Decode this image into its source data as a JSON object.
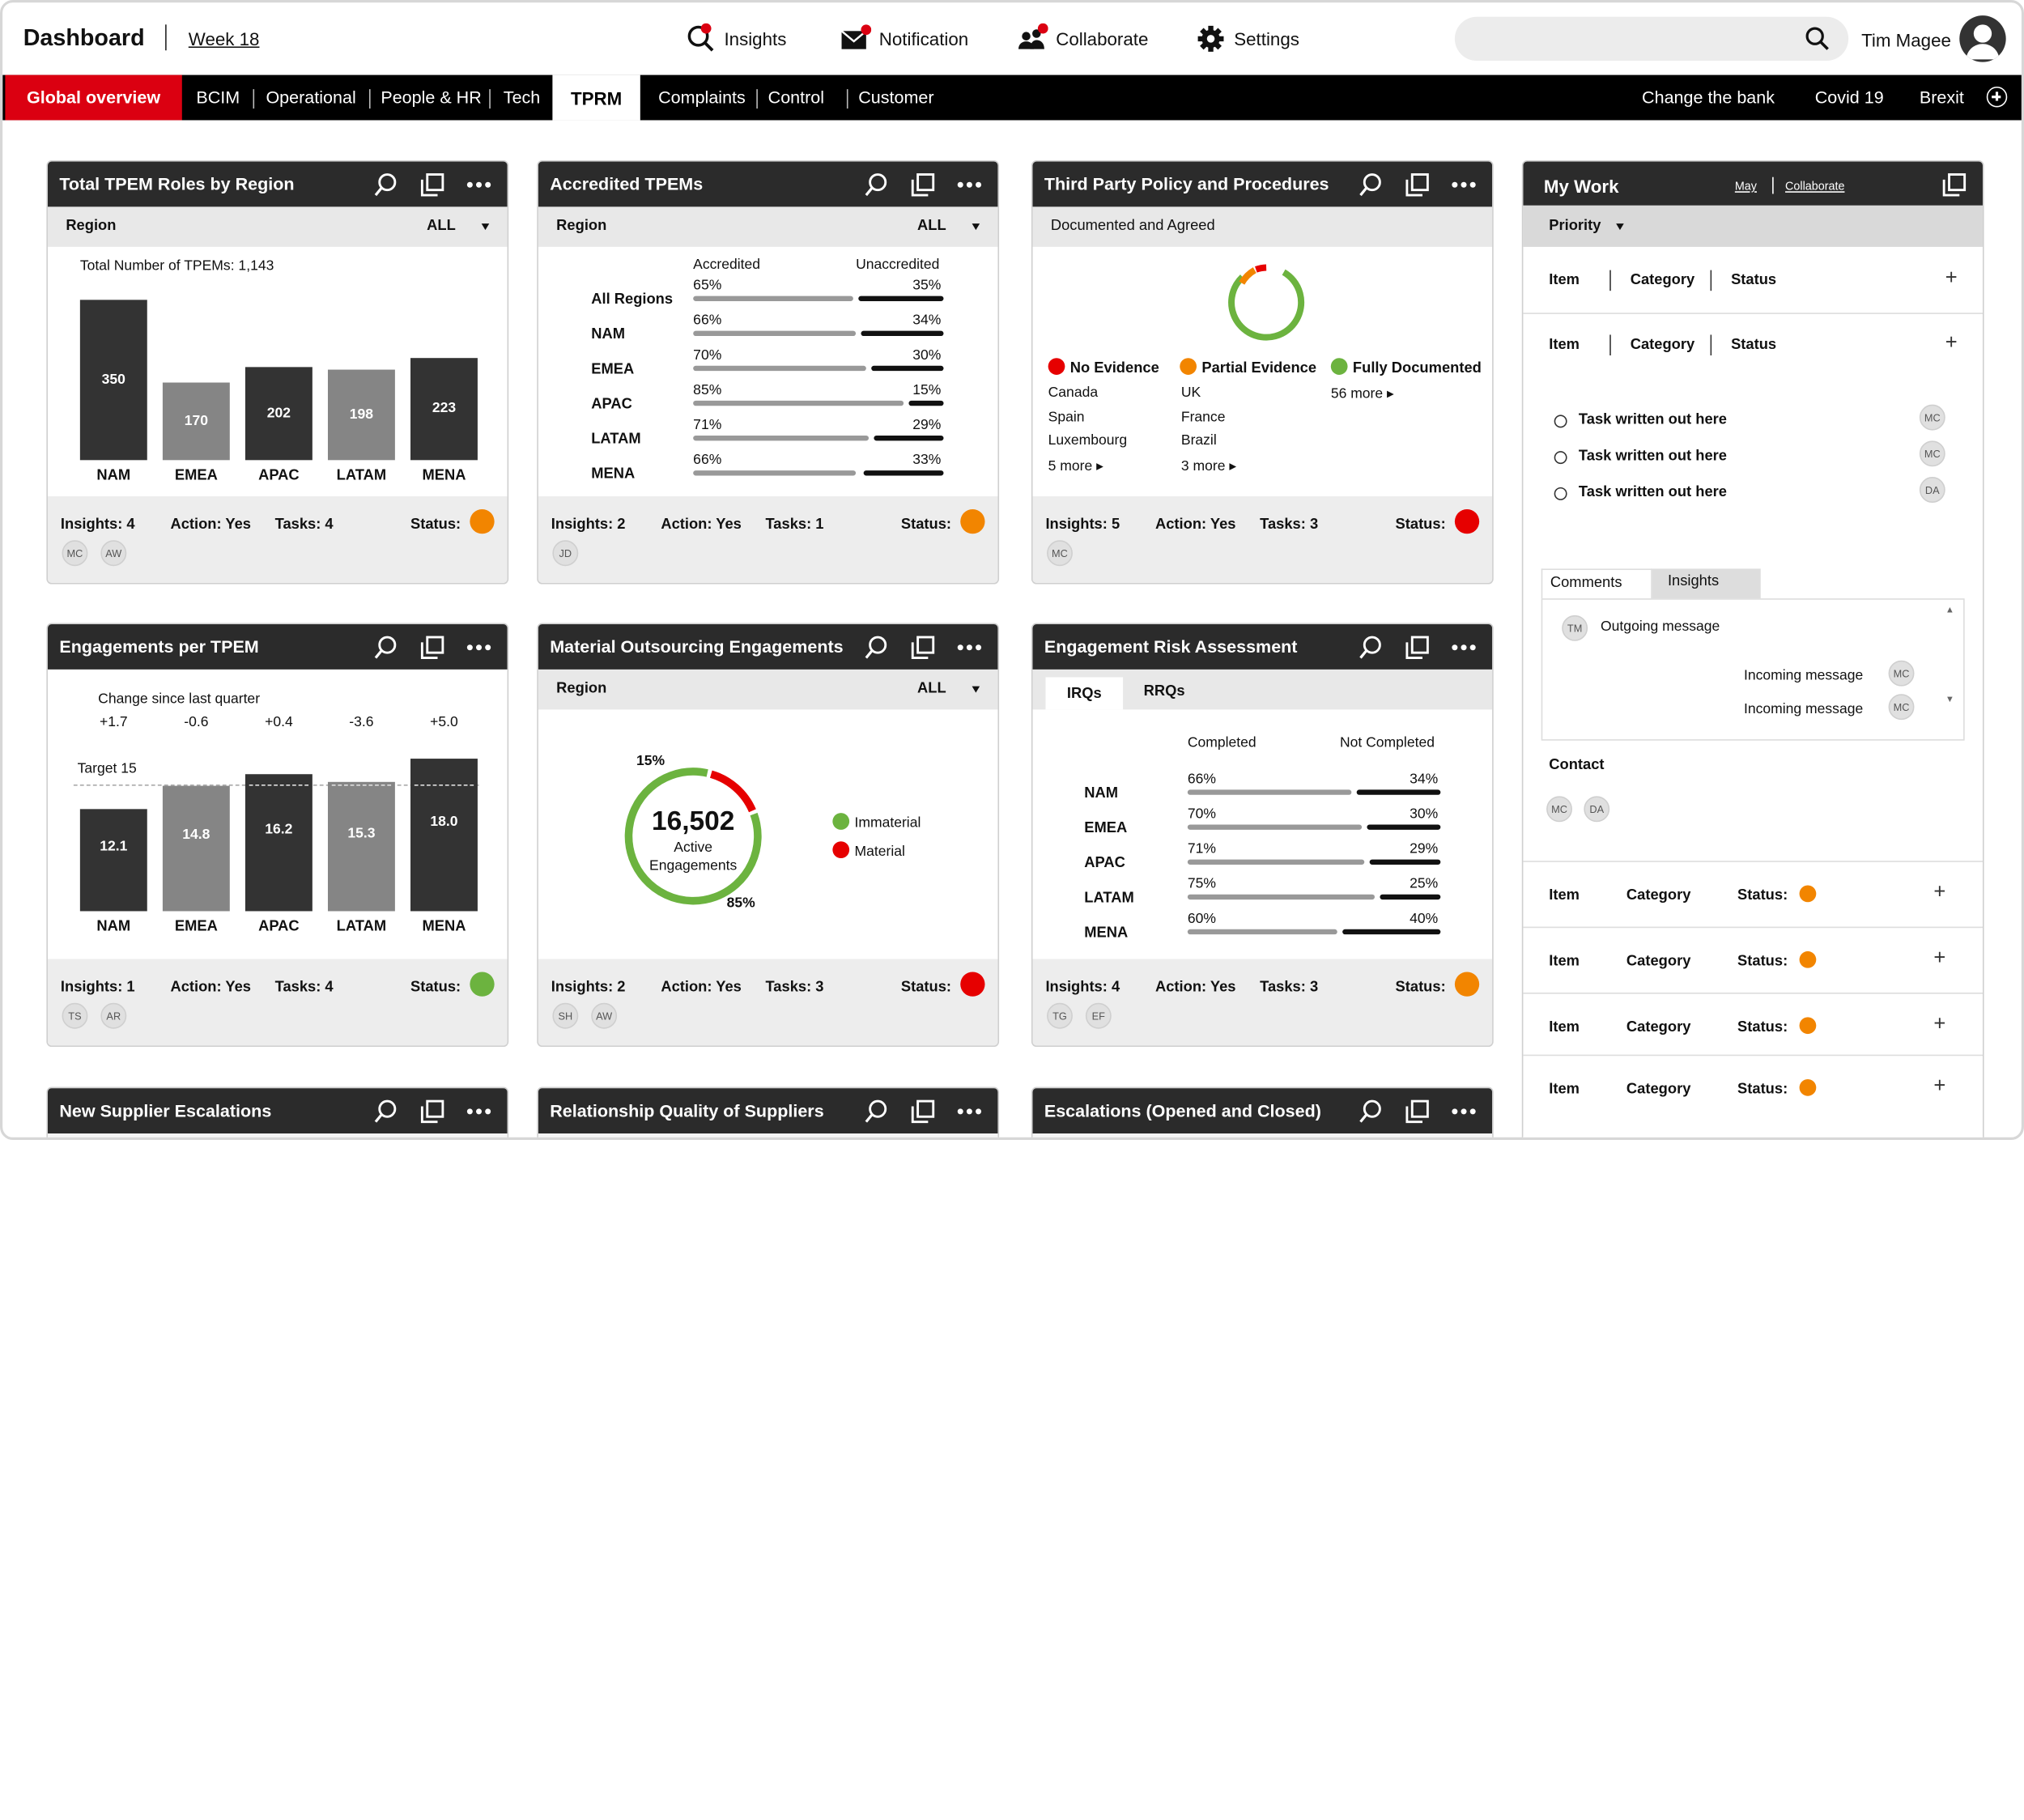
{
  "header": {
    "title": "Dashboard",
    "week": "Week 18",
    "nav": [
      {
        "label": "Insights",
        "icon": "search-notify-icon"
      },
      {
        "label": "Notification",
        "icon": "mail-notify-icon"
      },
      {
        "label": "Collaborate",
        "icon": "people-notify-icon"
      },
      {
        "label": "Settings",
        "icon": "gear-icon"
      }
    ],
    "search_placeholder": "",
    "user_name": "Tim Magee"
  },
  "navbar": {
    "global": "Global overview",
    "items": [
      "BCIM",
      "Operational",
      "People & HR",
      "Tech",
      "TPRM",
      "Complaints",
      "Control",
      "Customer"
    ],
    "active": "TPRM",
    "right": [
      "Change the bank",
      "Covid 19",
      "Brexit"
    ]
  },
  "colors": {
    "brand_red": "#db0011",
    "status_orange": "#f28500",
    "status_red": "#e60000",
    "status_green": "#6cb33f",
    "header_dark": "#2b2b2b"
  },
  "cards": {
    "tpem_roles": {
      "title": "Total TPEM Roles by Region",
      "filter_label": "Region",
      "filter_value": "ALL",
      "total_label": "Total Number of TPEMs: 1,143",
      "insights": "Insights: 4",
      "action": "Action: Yes",
      "tasks": "Tasks: 4",
      "status_label": "Status:",
      "status_color": "#f28500",
      "people": [
        "MC",
        "AW"
      ]
    },
    "accredited": {
      "title": "Accredited TPEMs",
      "filter_label": "Region",
      "filter_value": "ALL",
      "col_a": "Accredited",
      "col_b": "Unaccredited",
      "insights": "Insights: 2",
      "action": "Action: Yes",
      "tasks": "Tasks: 1",
      "status_label": "Status:",
      "status_color": "#f28500",
      "people": [
        "JD"
      ]
    },
    "policy": {
      "title": "Third Party Policy and Procedures",
      "subtitle": "Documented and Agreed",
      "groups": [
        {
          "label": "No Evidence",
          "color": "#e60000",
          "items": [
            "Canada",
            "Spain",
            "Luxembourg"
          ],
          "more": "5 more"
        },
        {
          "label": "Partial Evidence",
          "color": "#f28500",
          "items": [
            "UK",
            "France",
            "Brazil"
          ],
          "more": "3 more"
        },
        {
          "label": "Fully Documented",
          "color": "#6cb33f",
          "items": [],
          "more": "56 more"
        }
      ],
      "insights": "Insights: 5",
      "action": "Action: Yes",
      "tasks": "Tasks: 3",
      "status_label": "Status:",
      "status_color": "#e60000",
      "people": [
        "MC"
      ]
    },
    "engagements_tpem": {
      "title": "Engagements per TPEM",
      "change_label": "Change since last quarter",
      "target_label": "Target 15",
      "insights": "Insights: 1",
      "action": "Action: Yes",
      "tasks": "Tasks: 4",
      "status_label": "Status:",
      "status_color": "#6cb33f",
      "people": [
        "TS",
        "AR"
      ]
    },
    "outsourcing": {
      "title": "Material Outsourcing Engagements",
      "filter_label": "Region",
      "filter_value": "ALL",
      "total": "16,502",
      "total_label": "Active Engagements",
      "pct_material": "15%",
      "pct_immaterial": "85%",
      "legend": [
        {
          "label": "Immaterial",
          "color": "#6cb33f"
        },
        {
          "label": "Material",
          "color": "#e60000"
        }
      ],
      "insights": "Insights: 2",
      "action": "Action: Yes",
      "tasks": "Tasks: 3",
      "status_label": "Status:",
      "status_color": "#e60000",
      "people": [
        "SH",
        "AW"
      ]
    },
    "risk": {
      "title": "Engagement Risk Assessment",
      "tabs": [
        "IRQs",
        "RRQs"
      ],
      "col_a": "Completed",
      "col_b": "Not Completed",
      "insights": "Insights: 4",
      "action": "Action: Yes",
      "tasks": "Tasks: 3",
      "status_label": "Status:",
      "status_color": "#f28500",
      "people": [
        "TG",
        "EF"
      ]
    },
    "bottom_titles": [
      "New Supplier Escalations",
      "Relationship Quality of Suppliers",
      "Escalations (Opened and Closed)"
    ]
  },
  "chart_data": [
    {
      "type": "bar",
      "title": "Total TPEM Roles by Region",
      "categories": [
        "NAM",
        "EMEA",
        "APAC",
        "LATAM",
        "MENA"
      ],
      "values": [
        350,
        170,
        202,
        198,
        223
      ]
    },
    {
      "type": "bar",
      "title": "Accredited TPEMs",
      "categories": [
        "All Regions",
        "NAM",
        "EMEA",
        "APAC",
        "LATAM",
        "MENA"
      ],
      "series": [
        {
          "name": "Accredited",
          "values": [
            65,
            66,
            70,
            85,
            71,
            66
          ]
        },
        {
          "name": "Unaccredited",
          "values": [
            35,
            34,
            30,
            15,
            29,
            33
          ]
        }
      ],
      "unit": "%"
    },
    {
      "type": "bar",
      "title": "Engagements per TPEM",
      "categories": [
        "NAM",
        "EMEA",
        "APAC",
        "LATAM",
        "MENA"
      ],
      "values": [
        12.1,
        14.8,
        16.2,
        15.3,
        18.0
      ],
      "change": [
        "+1.7",
        "-0.6",
        "+0.4",
        "-3.6",
        "+5.0"
      ],
      "target": 15
    },
    {
      "type": "pie",
      "title": "Material Outsourcing Engagements",
      "categories": [
        "Immaterial",
        "Material"
      ],
      "values": [
        85,
        15
      ]
    },
    {
      "type": "bar",
      "title": "Engagement Risk Assessment",
      "categories": [
        "NAM",
        "EMEA",
        "APAC",
        "LATAM",
        "MENA"
      ],
      "series": [
        {
          "name": "Completed",
          "values": [
            66,
            70,
            71,
            75,
            60
          ]
        },
        {
          "name": "Not Completed",
          "values": [
            34,
            30,
            29,
            25,
            40
          ]
        }
      ],
      "unit": "%"
    }
  ],
  "my_work": {
    "title": "My Work",
    "links": [
      "May",
      "Collaborate"
    ],
    "priority_label": "Priority",
    "cols": [
      "Item",
      "Category",
      "Status"
    ],
    "tasks": [
      {
        "text": "Task written out here",
        "person": "MC"
      },
      {
        "text": "Task written out here",
        "person": "MC"
      },
      {
        "text": "Task written out here",
        "person": "DA"
      }
    ],
    "chat_tabs": [
      "Comments",
      "Insights"
    ],
    "messages": [
      {
        "text": "Outgoing message",
        "person": "TM"
      },
      {
        "text": "Incoming message",
        "person": "MC"
      },
      {
        "text": "Incoming message",
        "person": "MC"
      }
    ],
    "contact_label": "Contact",
    "contacts": [
      "MC",
      "DA"
    ],
    "rows": [
      {
        "item": "Item",
        "category": "Category",
        "status": "Status:"
      },
      {
        "item": "Item",
        "category": "Category",
        "status": "Status:"
      },
      {
        "item": "Item",
        "category": "Category",
        "status": "Status:"
      },
      {
        "item": "Item",
        "category": "Category",
        "status": "Status:"
      }
    ]
  }
}
